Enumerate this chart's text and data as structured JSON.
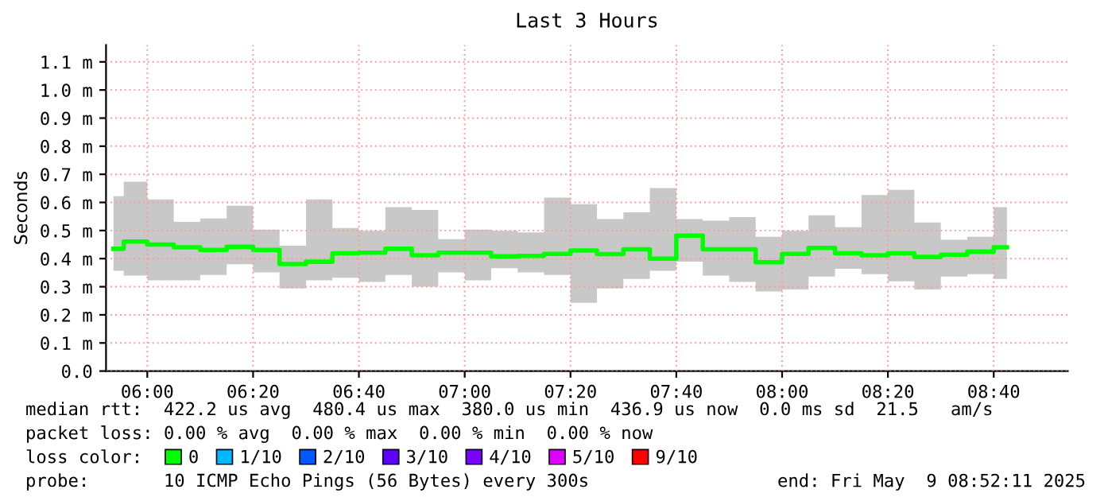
{
  "chart_data": {
    "type": "step",
    "title": "Last 3 Hours",
    "ylabel": "Seconds",
    "x": [
      5.8934,
      5.9583,
      6.0417,
      6.125,
      6.2083,
      6.2917,
      6.375,
      6.4583,
      6.5417,
      6.625,
      6.7083,
      6.7917,
      6.875,
      6.9583,
      7.0417,
      7.125,
      7.2083,
      7.2917,
      7.375,
      7.4583,
      7.5417,
      7.625,
      7.7083,
      7.7917,
      7.875,
      7.9583,
      8.0417,
      8.125,
      8.2083,
      8.2917,
      8.375,
      8.4583,
      8.5417,
      8.625,
      8.7083
    ],
    "series": [
      {
        "name": "0",
        "color": "#00ff00",
        "values": [
          0.435,
          0.461,
          0.45,
          0.44,
          0.431,
          0.442,
          0.431,
          0.381,
          0.389,
          0.419,
          0.421,
          0.435,
          0.412,
          0.421,
          0.421,
          0.408,
          0.41,
          0.417,
          0.429,
          0.416,
          0.433,
          0.4,
          0.482,
          0.433,
          0.433,
          0.387,
          0.417,
          0.438,
          0.419,
          0.412,
          0.419,
          0.406,
          0.414,
          0.425,
          0.44
        ],
        "lower": [
          0.357,
          0.34,
          0.323,
          0.323,
          0.342,
          0.38,
          0.351,
          0.294,
          0.323,
          0.332,
          0.317,
          0.342,
          0.3,
          0.351,
          0.323,
          0.366,
          0.351,
          0.342,
          0.243,
          0.294,
          0.328,
          0.357,
          0.389,
          0.34,
          0.317,
          0.283,
          0.29,
          0.336,
          0.364,
          0.345,
          0.319,
          0.29,
          0.336,
          0.345,
          0.328
        ],
        "upper": [
          0.622,
          0.674,
          0.611,
          0.531,
          0.543,
          0.588,
          0.503,
          0.446,
          0.611,
          0.509,
          0.499,
          0.583,
          0.573,
          0.469,
          0.503,
          0.499,
          0.493,
          0.617,
          0.594,
          0.541,
          0.565,
          0.651,
          0.541,
          0.535,
          0.548,
          0.478,
          0.499,
          0.554,
          0.512,
          0.626,
          0.645,
          0.529,
          0.467,
          0.478,
          0.583
        ]
      },
      {
        "name": "1/10",
        "color": "#00b8ff",
        "values": [
          null,
          null,
          null,
          null,
          null,
          null,
          null,
          null,
          null,
          null,
          null,
          null,
          null,
          null,
          null,
          null,
          null,
          null,
          null,
          null,
          null,
          null,
          null,
          null,
          null,
          null,
          null,
          null,
          null,
          null,
          null,
          null,
          null,
          null,
          null
        ]
      },
      {
        "name": "2/10",
        "color": "#0059ff",
        "values": [
          null,
          null,
          null,
          null,
          null,
          null,
          null,
          null,
          null,
          null,
          null,
          null,
          null,
          null,
          null,
          null,
          null,
          null,
          null,
          null,
          null,
          null,
          null,
          null,
          null,
          null,
          null,
          null,
          null,
          null,
          null,
          null,
          null,
          null,
          null
        ]
      },
      {
        "name": "3/10",
        "color": "#5e00ff",
        "values": [
          null,
          null,
          null,
          null,
          null,
          null,
          null,
          null,
          null,
          null,
          null,
          null,
          null,
          null,
          null,
          null,
          null,
          null,
          null,
          null,
          null,
          null,
          null,
          null,
          null,
          null,
          null,
          null,
          null,
          null,
          null,
          null,
          null,
          null,
          null
        ]
      },
      {
        "name": "4/10",
        "color": "#7e00ff",
        "values": [
          null,
          null,
          null,
          null,
          null,
          null,
          null,
          null,
          null,
          null,
          null,
          null,
          null,
          null,
          null,
          null,
          null,
          null,
          null,
          null,
          null,
          null,
          null,
          null,
          null,
          null,
          null,
          null,
          null,
          null,
          null,
          null,
          null,
          null,
          null
        ]
      },
      {
        "name": "5/10",
        "color": "#dd00ff",
        "values": [
          null,
          null,
          null,
          null,
          null,
          null,
          null,
          null,
          null,
          null,
          null,
          null,
          null,
          null,
          null,
          null,
          null,
          null,
          null,
          null,
          null,
          null,
          null,
          null,
          null,
          null,
          null,
          null,
          null,
          null,
          null,
          null,
          null,
          null,
          null
        ]
      },
      {
        "name": "9/10",
        "color": "#ff0000",
        "values": [
          null,
          null,
          null,
          null,
          null,
          null,
          null,
          null,
          null,
          null,
          null,
          null,
          null,
          null,
          null,
          null,
          null,
          null,
          null,
          null,
          null,
          null,
          null,
          null,
          null,
          null,
          null,
          null,
          null,
          null,
          null,
          null,
          null,
          null,
          null
        ]
      }
    ],
    "xlim": [
      5.87,
      8.9
    ],
    "xticks": [
      {
        "value": 6.0,
        "label": "06:00"
      },
      {
        "value": 6.3333,
        "label": "06:20"
      },
      {
        "value": 6.6667,
        "label": "06:40"
      },
      {
        "value": 7.0,
        "label": "07:00"
      },
      {
        "value": 7.3333,
        "label": "07:20"
      },
      {
        "value": 7.6667,
        "label": "07:40"
      },
      {
        "value": 8.0,
        "label": "08:00"
      },
      {
        "value": 8.3333,
        "label": "08:20"
      },
      {
        "value": 8.6667,
        "label": "08:40"
      }
    ],
    "ylim": [
      0,
      1.16
    ],
    "yticks": [
      {
        "value": 0.0,
        "label": "0.0"
      },
      {
        "value": 0.1,
        "label": "0.1 m"
      },
      {
        "value": 0.2,
        "label": "0.2 m"
      },
      {
        "value": 0.3,
        "label": "0.3 m"
      },
      {
        "value": 0.4,
        "label": "0.4 m"
      },
      {
        "value": 0.5,
        "label": "0.5 m"
      },
      {
        "value": 0.6,
        "label": "0.6 m"
      },
      {
        "value": 0.7,
        "label": "0.7 m"
      },
      {
        "value": 0.8,
        "label": "0.8 m"
      },
      {
        "value": 0.9,
        "label": "0.9 m"
      },
      {
        "value": 1.0,
        "label": "1.0 m"
      },
      {
        "value": 1.1,
        "label": "1.1 m"
      }
    ],
    "grid": true,
    "legend": "bottom",
    "annotations": [
      "median rtt:  422.2 us avg  480.4 us max  380.0 us min  436.9 us now  0.0 ms sd  21.5   am/s",
      "packet loss: 0.00 % avg  0.00 % max  0.00 % min  0.00 % now",
      "loss color:",
      "probe:       10 ICMP Echo Pings (56 Bytes) every 300s",
      "end: Fri May  9 08:52:11 2025"
    ]
  }
}
